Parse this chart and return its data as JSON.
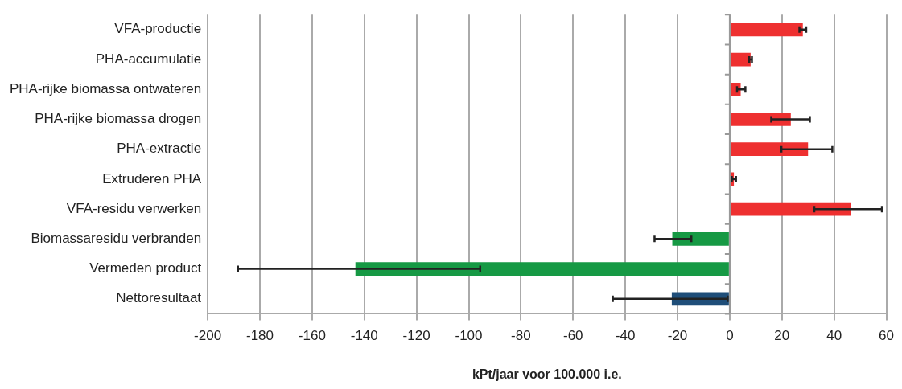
{
  "chart_data": {
    "type": "bar",
    "orientation": "horizontal",
    "xlabel": "kPt/jaar voor 100.000 i.e.",
    "categories": [
      "VFA-productie",
      "PHA-accumulatie",
      "PHA-rijke biomassa ontwateren",
      "PHA-rijke biomassa drogen",
      "PHA-extractie",
      "Extruderen PHA",
      "VFA-residu verwerken",
      "Biomassaresidu verbranden",
      "Vermeden product",
      "Nettoresultaat"
    ],
    "values": [
      28,
      8,
      4.2,
      23.4,
      30,
      1.6,
      46.5,
      -22,
      -143.4,
      -22.2
    ],
    "colors": [
      "#ee3030",
      "#ee3030",
      "#ee3030",
      "#ee3030",
      "#ee3030",
      "#ee3030",
      "#ee3030",
      "#169944",
      "#169944",
      "#1f4e79"
    ],
    "errors": [
      [
        26.7,
        29.3
      ],
      [
        7.5,
        8.5
      ],
      [
        2.8,
        6
      ],
      [
        15.9,
        30.7
      ],
      [
        19.8,
        39.3
      ],
      [
        0.8,
        2.4
      ],
      [
        32.4,
        58.3
      ],
      [
        -28.8,
        -14.7
      ],
      [
        -188.4,
        -95.6
      ],
      [
        -44.8,
        -0.8
      ]
    ],
    "xlim": [
      -200,
      60
    ],
    "xticks": [
      -200,
      -180,
      -160,
      -140,
      -120,
      -100,
      -80,
      -60,
      -40,
      -20,
      0,
      20,
      40,
      60
    ],
    "grid": "x",
    "legend": false
  }
}
